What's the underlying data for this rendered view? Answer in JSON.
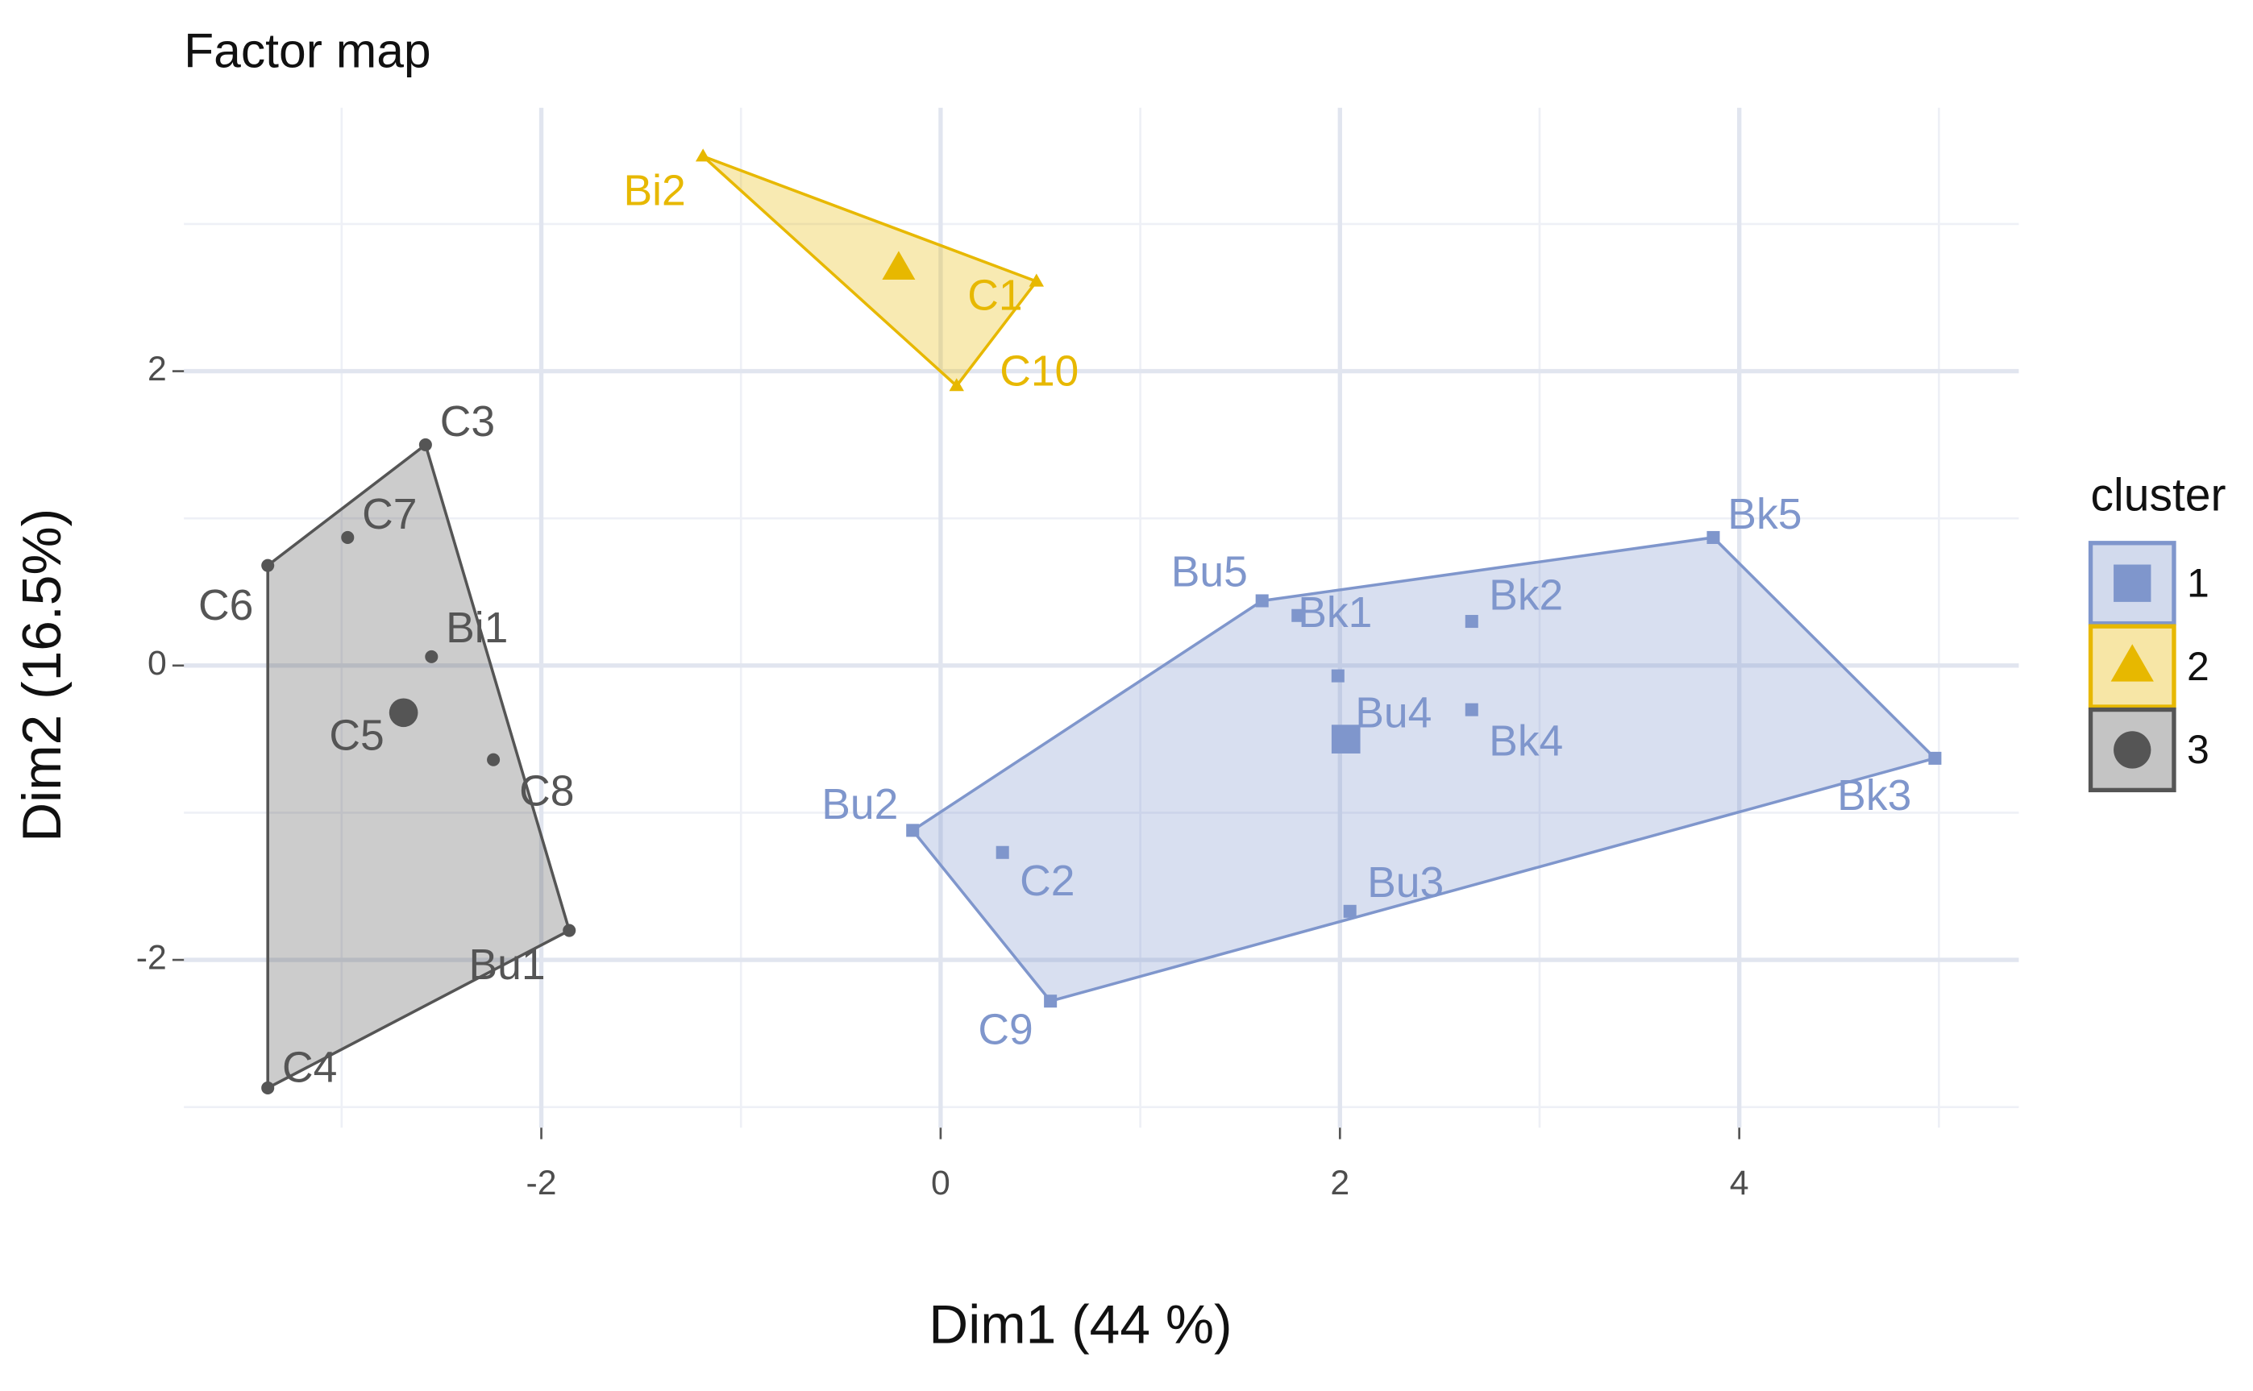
{
  "chart_data": {
    "type": "scatter",
    "title": "Factor map",
    "x_label": "Dim1 (44 %)",
    "y_label": "Dim2 (16.5%)",
    "legend_title": "cluster",
    "xlim": [
      -3.79,
      5.4
    ],
    "ylim": [
      -3.14,
      3.79
    ],
    "xticks": [
      -2,
      0,
      2,
      4
    ],
    "yticks": [
      -2,
      0,
      2
    ],
    "xminor": [
      -3,
      -1,
      1,
      3,
      5
    ],
    "yminor": [
      -3,
      -1,
      1,
      3
    ],
    "grid": true,
    "series": [
      {
        "name": "1",
        "color": "#7f96cc",
        "shape": "square",
        "labels": [
          "Bu5",
          "Bk1",
          "Bu4",
          "Bk2",
          "Bk4",
          "Bk3",
          "Bu2",
          "C2",
          "Bu3",
          "C9",
          "Bk5"
        ],
        "x": [
          1.61,
          1.79,
          1.99,
          2.66,
          2.66,
          4.98,
          -0.14,
          0.31,
          2.05,
          0.55,
          3.87
        ],
        "values": [
          0.44,
          0.34,
          -0.07,
          0.3,
          -0.3,
          -0.63,
          -1.12,
          -1.27,
          -1.67,
          -2.28,
          0.87
        ],
        "center_x": 2.03,
        "center_y": -0.5
      },
      {
        "name": "2",
        "color": "#e7b800",
        "shape": "triangle",
        "labels": [
          "Bi2",
          "C1",
          "C10"
        ],
        "x": [
          -1.19,
          0.48,
          0.08
        ],
        "values": [
          3.46,
          2.61,
          1.9
        ],
        "center_x": -0.21,
        "center_y": 2.7
      },
      {
        "name": "3",
        "color": "#555555",
        "shape": "circle",
        "labels": [
          "C3",
          "C7",
          "C6",
          "Bi1",
          "C5",
          "C8",
          "Bu1",
          "C4"
        ],
        "x": [
          -2.58,
          -2.97,
          -3.37,
          -2.55,
          -2.7,
          -2.24,
          -1.86,
          -3.37
        ],
        "values": [
          1.5,
          0.87,
          0.68,
          0.06,
          -0.3,
          -0.64,
          -1.8,
          -2.87
        ],
        "center_x": -2.69,
        "center_y": -0.32
      }
    ]
  }
}
